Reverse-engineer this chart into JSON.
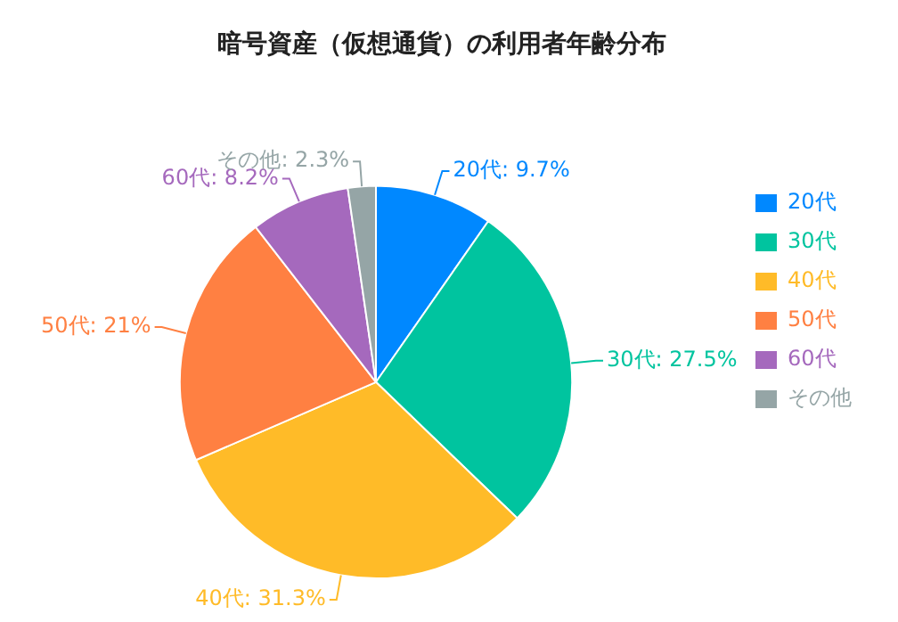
{
  "chart_data": {
    "type": "pie",
    "title": "暗号資産（仮想通貨）の利用者年齢分布",
    "categories": [
      "20代",
      "30代",
      "40代",
      "50代",
      "60代",
      "その他"
    ],
    "values": [
      9.7,
      27.5,
      31.3,
      21,
      8.2,
      2.3
    ],
    "value_labels": [
      "20代: 9.7%",
      "30代: 27.5%",
      "40代: 31.3%",
      "50代: 21%",
      "60代: 8.2%",
      "その他: 2.3%"
    ],
    "colors": [
      "#0088ff",
      "#00c49f",
      "#ffbb28",
      "#ff8042",
      "#a569bd",
      "#95a5a6"
    ],
    "legend": "right"
  }
}
